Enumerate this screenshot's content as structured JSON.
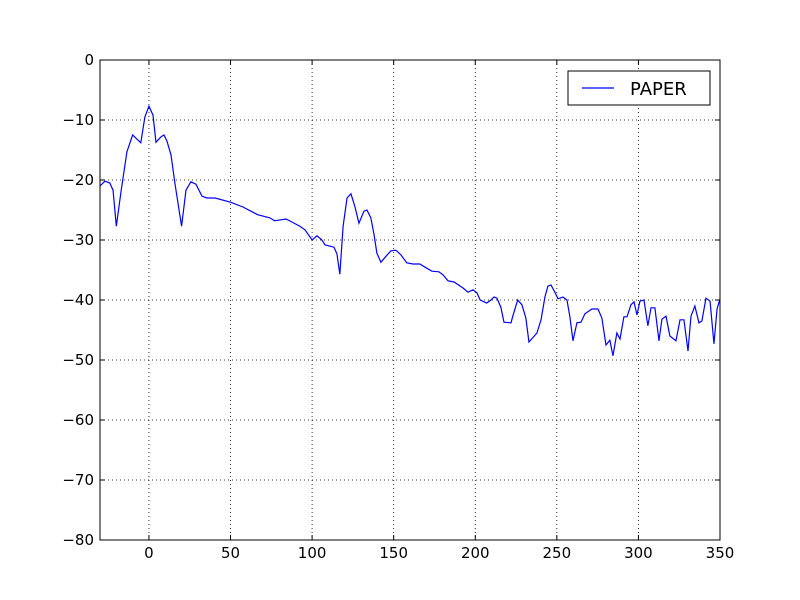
{
  "chart_data": {
    "type": "line",
    "x": [
      -30,
      -27,
      -24,
      -22,
      -20,
      -17,
      -13.5,
      -10,
      -5,
      -2.5,
      0,
      2.5,
      4.3,
      7.4,
      9.2,
      11,
      13.5,
      16,
      20,
      22.7,
      25.7,
      28.8,
      32.5,
      35.5,
      40.5,
      50,
      57.6,
      62.5,
      66.8,
      74,
      77,
      84,
      87.6,
      92.5,
      95.6,
      100,
      103,
      106,
      107.9,
      113.4,
      115.2,
      117,
      119,
      121.4,
      123.8,
      126.3,
      128.7,
      131.8,
      133.6,
      136,
      137.9,
      139.7,
      142.2,
      145.3,
      148.3,
      151.4,
      154.5,
      158,
      161.8,
      166,
      170.3,
      173.4,
      177.7,
      180.2,
      183.3,
      187,
      192.5,
      195.5,
      198.6,
      201,
      203,
      207,
      209.6,
      211.5,
      213.3,
      215.7,
      217.6,
      221.9,
      223,
      226,
      228.6,
      231,
      232.9,
      237.8,
      240.3,
      242.7,
      244.5,
      246.4,
      248.8,
      250.7,
      253.7,
      256.2,
      258,
      259.9,
      262.3,
      264.8,
      267.2,
      271.5,
      275.2,
      277.6,
      280.1,
      282.5,
      284.4,
      286.8,
      288.7,
      291.1,
      293,
      295.4,
      297.3,
      299.1,
      300.9,
      303.4,
      305.8,
      307.7,
      310.1,
      312.6,
      314.4,
      316.9,
      319.3,
      323,
      325.5,
      327.9,
      330.4,
      332.2,
      334.6,
      337.1,
      338.9,
      341.4,
      343.9,
      346.3,
      348.2,
      350
    ],
    "series": [
      {
        "name": "PAPER",
        "color": "#0000ff",
        "values": [
          -21,
          -20.2,
          -20.5,
          -21.7,
          -27.7,
          -21.7,
          -15.3,
          -12.5,
          -13.8,
          -9.5,
          -7.7,
          -9.2,
          -13.7,
          -12.8,
          -12.5,
          -13.5,
          -15.8,
          -20.7,
          -27.7,
          -21.7,
          -20.3,
          -20.7,
          -22.7,
          -23,
          -23,
          -23.7,
          -24.5,
          -25.2,
          -25.8,
          -26.3,
          -26.8,
          -26.5,
          -27,
          -27.7,
          -28.3,
          -30,
          -29.3,
          -30,
          -30.8,
          -31.2,
          -32.3,
          -35.7,
          -27.7,
          -23,
          -22.3,
          -24.5,
          -27.2,
          -25.2,
          -25,
          -26.3,
          -29,
          -32.2,
          -33.7,
          -32.7,
          -31.8,
          -31.7,
          -32.5,
          -33.8,
          -34,
          -34,
          -34.7,
          -35.2,
          -35.3,
          -35.8,
          -36.8,
          -37,
          -38,
          -38.7,
          -38.3,
          -38.8,
          -40,
          -40.5,
          -40,
          -39.5,
          -39.7,
          -41.2,
          -43.7,
          -43.8,
          -42.7,
          -40,
          -40.8,
          -43,
          -47,
          -45.5,
          -43.3,
          -39.5,
          -37.7,
          -37.5,
          -38.7,
          -39.8,
          -39.5,
          -40,
          -42.8,
          -46.8,
          -43.8,
          -43.7,
          -42.3,
          -41.5,
          -41.5,
          -43,
          -47.5,
          -46.7,
          -49.3,
          -45.5,
          -46.5,
          -42.8,
          -42.8,
          -40.8,
          -40.3,
          -42.5,
          -40.2,
          -40,
          -44.3,
          -41.3,
          -41.3,
          -46.8,
          -43.2,
          -42.7,
          -46,
          -46.8,
          -43.3,
          -43.3,
          -48.5,
          -42.7,
          -41,
          -43.8,
          -43.5,
          -39.7,
          -40.2,
          -47.3,
          -41.5,
          -39.8
        ]
      }
    ],
    "xlim": [
      -30,
      350
    ],
    "ylim": [
      -80,
      0
    ],
    "xticks": [
      0,
      50,
      100,
      150,
      200,
      250,
      300,
      350
    ],
    "yticks": [
      0,
      {
        "value": -10,
        "label": "−10"
      },
      {
        "value": -20,
        "label": "−20"
      },
      {
        "value": -30,
        "label": "−30"
      },
      {
        "value": -40,
        "label": "−40"
      },
      {
        "value": -50,
        "label": "−50"
      },
      {
        "value": -60,
        "label": "−60"
      },
      {
        "value": -70,
        "label": "−70"
      },
      {
        "value": -80,
        "label": "−80"
      }
    ],
    "grid": true,
    "legend": "upper right"
  }
}
